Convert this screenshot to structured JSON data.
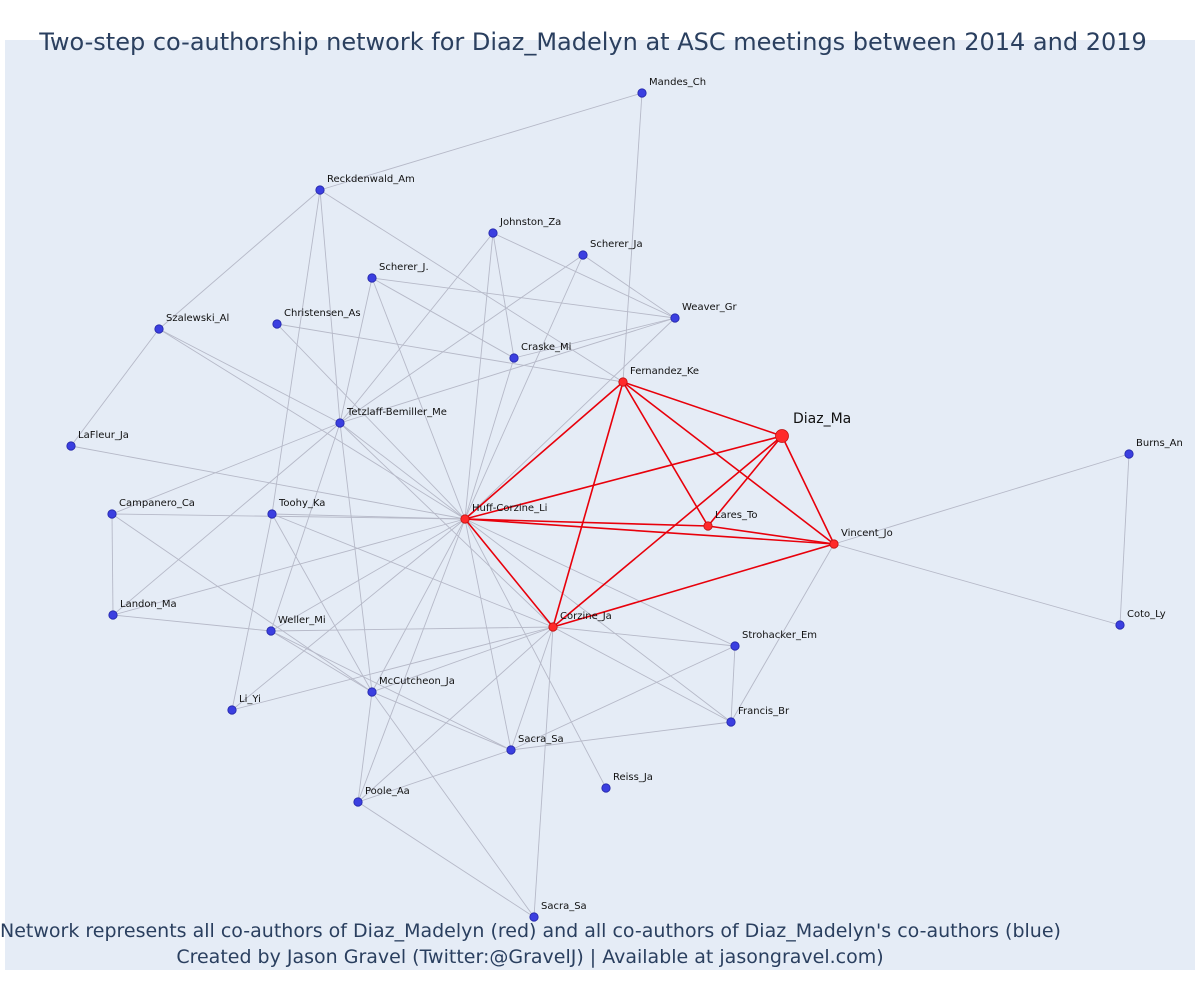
{
  "title": "Two-step co-authorship network for Diaz_Madelyn at ASC meetings between 2014 and 2019",
  "caption": {
    "line1": "Network represents all co-authors of Diaz_Madelyn (red) and all co-authors of Diaz_Madelyn's co-authors (blue)",
    "line2": "Created by Jason Gravel (Twitter:@GravelJ) | Available at jasongravel.com)"
  },
  "colors": {
    "background": "#e5ecf6",
    "direct_node": "#ff2a2a",
    "direct_edge": "#e8000b",
    "indirect_node": "#3b3fe0",
    "indirect_edge": "#b6b9c8",
    "title": "#2a3f5f"
  },
  "nodes": [
    {
      "id": "diaz",
      "label": "Diaz_Ma",
      "group": "focal"
    },
    {
      "id": "fernandez",
      "label": "Fernandez_Ke",
      "group": "direct"
    },
    {
      "id": "huff",
      "label": "Huff-Corzine_Li",
      "group": "direct"
    },
    {
      "id": "lares",
      "label": "Lares_To",
      "group": "direct"
    },
    {
      "id": "vincent",
      "label": "Vincent_Jo",
      "group": "direct"
    },
    {
      "id": "corzine",
      "label": "Corzine_Ja",
      "group": "direct"
    },
    {
      "id": "mandes",
      "label": "Mandes_Ch",
      "group": "indirect"
    },
    {
      "id": "reckdenwald",
      "label": "Reckdenwald_Am",
      "group": "indirect"
    },
    {
      "id": "johnston",
      "label": "Johnston_Za",
      "group": "indirect"
    },
    {
      "id": "schererja",
      "label": "Scherer_Ja",
      "group": "indirect"
    },
    {
      "id": "schererj",
      "label": "Scherer_J.",
      "group": "indirect"
    },
    {
      "id": "weaver",
      "label": "Weaver_Gr",
      "group": "indirect"
    },
    {
      "id": "szalewski",
      "label": "Szalewski_Al",
      "group": "indirect"
    },
    {
      "id": "christensen",
      "label": "Christensen_As",
      "group": "indirect"
    },
    {
      "id": "craske",
      "label": "Craske_Mi",
      "group": "indirect"
    },
    {
      "id": "tetzlaff",
      "label": "Tetzlaff-Bemiller_Me",
      "group": "indirect"
    },
    {
      "id": "lafleur",
      "label": "LaFleur_Ja",
      "group": "indirect"
    },
    {
      "id": "burns",
      "label": "Burns_An",
      "group": "indirect"
    },
    {
      "id": "campanero",
      "label": "Campanero_Ca",
      "group": "indirect"
    },
    {
      "id": "toohy",
      "label": "Toohy_Ka",
      "group": "indirect"
    },
    {
      "id": "landon",
      "label": "Landon_Ma",
      "group": "indirect"
    },
    {
      "id": "weller",
      "label": "Weller_Mi",
      "group": "indirect"
    },
    {
      "id": "strohacker",
      "label": "Strohacker_Em",
      "group": "indirect"
    },
    {
      "id": "coto",
      "label": "Coto_Ly",
      "group": "indirect"
    },
    {
      "id": "mccutcheon",
      "label": "McCutcheon_Ja",
      "group": "indirect"
    },
    {
      "id": "liyi",
      "label": "Li_Yi",
      "group": "indirect"
    },
    {
      "id": "francis",
      "label": "Francis_Br",
      "group": "indirect"
    },
    {
      "id": "sacra1",
      "label": "Sacra_Sa",
      "group": "indirect"
    },
    {
      "id": "reiss",
      "label": "Reiss_Ja",
      "group": "indirect"
    },
    {
      "id": "poole",
      "label": "Poole_Aa",
      "group": "indirect"
    },
    {
      "id": "sacra2",
      "label": "Sacra_Sa",
      "group": "indirect"
    }
  ],
  "edges": [
    [
      "diaz",
      "fernandez"
    ],
    [
      "diaz",
      "huff"
    ],
    [
      "diaz",
      "lares"
    ],
    [
      "diaz",
      "vincent"
    ],
    [
      "diaz",
      "corzine"
    ],
    [
      "fernandez",
      "huff"
    ],
    [
      "fernandez",
      "lares"
    ],
    [
      "fernandez",
      "vincent"
    ],
    [
      "fernandez",
      "corzine"
    ],
    [
      "huff",
      "lares"
    ],
    [
      "huff",
      "vincent"
    ],
    [
      "huff",
      "corzine"
    ],
    [
      "lares",
      "vincent"
    ],
    [
      "corzine",
      "vincent"
    ],
    [
      "mandes",
      "reckdenwald"
    ],
    [
      "mandes",
      "fernandez"
    ],
    [
      "reckdenwald",
      "szalewski"
    ],
    [
      "reckdenwald",
      "tetzlaff"
    ],
    [
      "reckdenwald",
      "toohy"
    ],
    [
      "reckdenwald",
      "fernandez"
    ],
    [
      "johnston",
      "tetzlaff"
    ],
    [
      "johnston",
      "weaver"
    ],
    [
      "johnston",
      "huff"
    ],
    [
      "johnston",
      "craske"
    ],
    [
      "schererja",
      "tetzlaff"
    ],
    [
      "schererja",
      "weaver"
    ],
    [
      "schererja",
      "huff"
    ],
    [
      "schererj",
      "weaver"
    ],
    [
      "schererj",
      "craske"
    ],
    [
      "schererj",
      "tetzlaff"
    ],
    [
      "schererj",
      "huff"
    ],
    [
      "weaver",
      "craske"
    ],
    [
      "weaver",
      "tetzlaff"
    ],
    [
      "weaver",
      "huff"
    ],
    [
      "christensen",
      "fernandez"
    ],
    [
      "christensen",
      "huff"
    ],
    [
      "craske",
      "huff"
    ],
    [
      "szalewski",
      "lafleur"
    ],
    [
      "szalewski",
      "huff"
    ],
    [
      "szalewski",
      "tetzlaff"
    ],
    [
      "tetzlaff",
      "huff"
    ],
    [
      "tetzlaff",
      "corzine"
    ],
    [
      "tetzlaff",
      "mccutcheon"
    ],
    [
      "tetzlaff",
      "weller"
    ],
    [
      "tetzlaff",
      "campanero"
    ],
    [
      "tetzlaff",
      "landon"
    ],
    [
      "lafleur",
      "huff"
    ],
    [
      "burns",
      "vincent"
    ],
    [
      "burns",
      "coto"
    ],
    [
      "campanero",
      "huff"
    ],
    [
      "campanero",
      "landon"
    ],
    [
      "campanero",
      "mccutcheon"
    ],
    [
      "toohy",
      "huff"
    ],
    [
      "toohy",
      "liyi"
    ],
    [
      "toohy",
      "mccutcheon"
    ],
    [
      "toohy",
      "corzine"
    ],
    [
      "landon",
      "weller"
    ],
    [
      "landon",
      "huff"
    ],
    [
      "weller",
      "corzine"
    ],
    [
      "weller",
      "huff"
    ],
    [
      "weller",
      "sacra1"
    ],
    [
      "weller",
      "mccutcheon"
    ],
    [
      "strohacker",
      "huff"
    ],
    [
      "strohacker",
      "francis"
    ],
    [
      "strohacker",
      "corzine"
    ],
    [
      "strohacker",
      "sacra1"
    ],
    [
      "coto",
      "vincent"
    ],
    [
      "mccutcheon",
      "huff"
    ],
    [
      "mccutcheon",
      "corzine"
    ],
    [
      "mccutcheon",
      "poole"
    ],
    [
      "mccutcheon",
      "sacra2"
    ],
    [
      "mccutcheon",
      "sacra1"
    ],
    [
      "liyi",
      "huff"
    ],
    [
      "liyi",
      "corzine"
    ],
    [
      "francis",
      "huff"
    ],
    [
      "francis",
      "vincent"
    ],
    [
      "francis",
      "sacra1"
    ],
    [
      "francis",
      "corzine"
    ],
    [
      "sacra1",
      "huff"
    ],
    [
      "sacra1",
      "corzine"
    ],
    [
      "sacra1",
      "poole"
    ],
    [
      "reiss",
      "huff"
    ],
    [
      "poole",
      "huff"
    ],
    [
      "poole",
      "corzine"
    ],
    [
      "poole",
      "sacra2"
    ],
    [
      "sacra2",
      "corzine"
    ]
  ]
}
